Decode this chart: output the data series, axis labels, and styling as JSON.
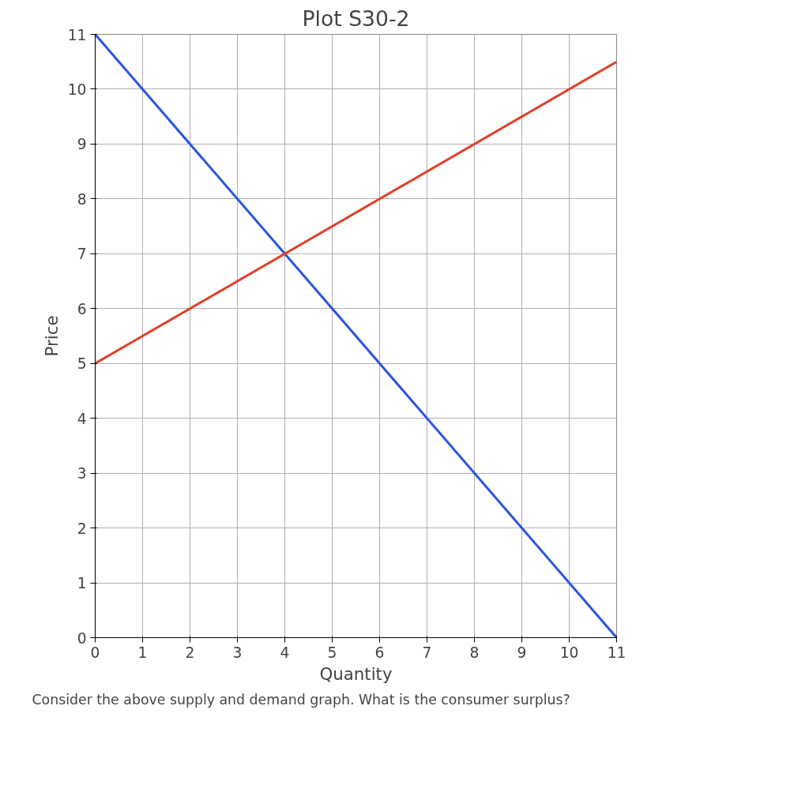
{
  "chart_data": {
    "type": "line",
    "title": "Plot S30-2",
    "xlabel": "Quantity",
    "ylabel": "Price",
    "x": [
      0,
      11
    ],
    "series": [
      {
        "color": "#2b55e0",
        "values": [
          11,
          0
        ]
      },
      {
        "color": "#e0402a",
        "values": [
          5,
          10.5
        ]
      }
    ],
    "xlim": [
      0,
      11
    ],
    "ylim": [
      0,
      11
    ],
    "xticks": [
      0,
      1,
      2,
      3,
      4,
      5,
      6,
      7,
      8,
      9,
      10,
      11
    ],
    "yticks": [
      0,
      1,
      2,
      3,
      4,
      5,
      6,
      7,
      8,
      9,
      10,
      11
    ],
    "grid": true,
    "marker": "none",
    "line_style": "solid",
    "annotations": [
      "Consider the above supply and demand graph. What is the consumer surplus?"
    ]
  }
}
